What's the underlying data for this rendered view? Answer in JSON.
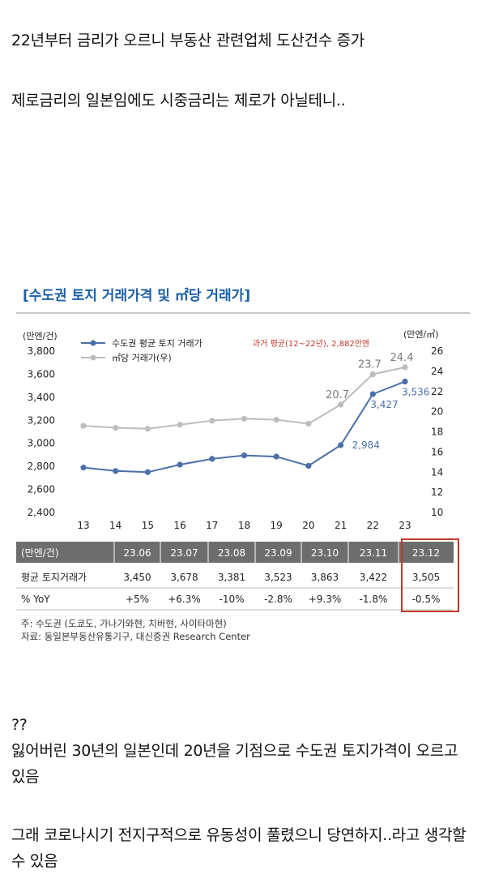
{
  "text": {
    "p1": "22년부터 금리가 오르니 부동산 관련업체 도산건수 증가",
    "p2": "제로금리의 일본임에도 시중금리는 제로가 아닐테니..",
    "p3": "??",
    "p4": "잃어버린 30년의 일본인데 20년을 기점으로 수도권 토지가격이 오르고 있음",
    "p5": "그래 코로나시기 전지구적으로 유동성이 풀렸으니 당연하지..라고 생각할수 있음"
  },
  "colors": {
    "title": "#1a5fa8",
    "series1": "#4a6fa8",
    "series2": "#bdbdbd",
    "annotation": "#c0392b",
    "table_header_bg": "#6d6d6d",
    "highlight_box": "#c0392b"
  },
  "chart_data": {
    "type": "line",
    "title": "[수도권 토지 거래가격 및 ㎡당 거래가]",
    "ylabel_left": "(만엔/건)",
    "ylabel_right": "(만엔/㎡)",
    "annotation": "과거 평균(12~22년), 2,882만엔",
    "categories": [
      "13",
      "14",
      "15",
      "16",
      "17",
      "18",
      "19",
      "20",
      "21",
      "22",
      "23"
    ],
    "left_ticks": [
      "3,800",
      "3,600",
      "3,400",
      "3,200",
      "3,000",
      "2,800",
      "2,600",
      "2,400"
    ],
    "right_ticks": [
      "26",
      "24",
      "22",
      "20",
      "18",
      "16",
      "14",
      "12",
      "10"
    ],
    "ylim_left": [
      2400,
      3800
    ],
    "ylim_right": [
      10,
      26
    ],
    "series": [
      {
        "name": "수도권 평균 토지 거래가",
        "axis": "left",
        "values": [
          2790,
          2760,
          2750,
          2815,
          2865,
          2895,
          2885,
          2805,
          2984,
          3427,
          3536
        ],
        "labels": [
          "",
          "",
          "",
          "",
          "",
          "",
          "",
          "",
          "2,984",
          "3,427",
          "3,536"
        ]
      },
      {
        "name": "㎡당 거래가(우)",
        "axis": "right",
        "values": [
          18.6,
          18.4,
          18.3,
          18.7,
          19.1,
          19.3,
          19.2,
          18.8,
          20.7,
          23.7,
          24.4
        ],
        "labels": [
          "",
          "",
          "",
          "",
          "",
          "",
          "",
          "",
          "20.7",
          "23.7",
          "24.4"
        ]
      }
    ],
    "legend_position": "top-left",
    "grid": false,
    "table": {
      "header": [
        "(만엔/건)",
        "23.06",
        "23.07",
        "23.08",
        "23.09",
        "23.10",
        "23.11",
        "23.12"
      ],
      "rows": [
        [
          "평균 토지거래가",
          "3,450",
          "3,678",
          "3,381",
          "3,523",
          "3,863",
          "3,422",
          "3,505"
        ],
        [
          "% YoY",
          "+5%",
          "+6.3%",
          "-10%",
          "-2.8%",
          "+9.3%",
          "-1.8%",
          "-0.5%"
        ]
      ],
      "highlight_column": "23.12"
    },
    "notes": [
      "주: 수도권 (도쿄도, 가나가와현, 치바현, 사이타마현)",
      "자료: 동일본부동산유통기구, 대신증권 Research Center"
    ]
  }
}
